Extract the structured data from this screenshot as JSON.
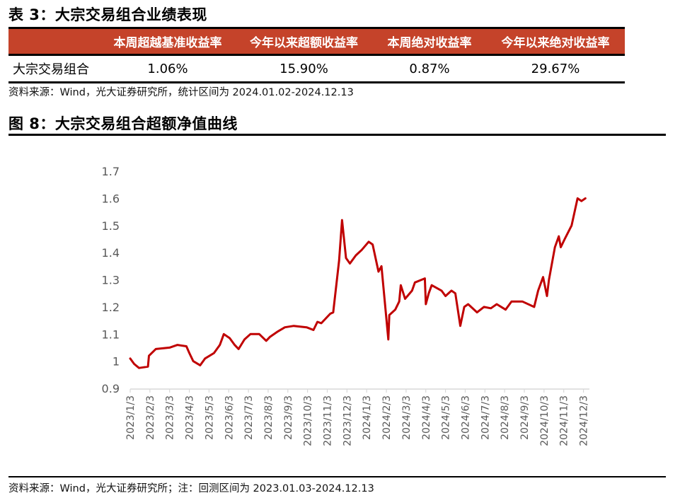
{
  "table": {
    "title": "表 3：大宗交易组合业绩表现",
    "headers": [
      "",
      "本周超越基准收益率",
      "今年以来超额收益率",
      "本周绝对收益率",
      "今年以来绝对收益率"
    ],
    "rows": [
      {
        "name": "大宗交易组合",
        "values": [
          "1.06%",
          "15.90%",
          "0.87%",
          "29.67%"
        ]
      }
    ],
    "source": "资料来源：Wind，光大证券研究所，统计区间为 2024.01.02-2024.12.13",
    "header_color": "#c5432a"
  },
  "figure": {
    "title": "图 8：大宗交易组合超额净值曲线",
    "source": "资料来源：Wind，光大证券研究所；注：回测区间为 2023.01.03-2024.12.13"
  },
  "chart_data": {
    "type": "line",
    "title": "大宗交易组合超额净值曲线",
    "xlabel": "",
    "ylabel": "",
    "ylim": [
      0.9,
      1.7
    ],
    "yticks": [
      "1.7",
      "1.6",
      "1.5",
      "1.4",
      "1.3",
      "1.2",
      "1.1",
      "1",
      "0.9"
    ],
    "ytick_values": [
      1.7,
      1.6,
      1.5,
      1.4,
      1.3,
      1.2,
      1.1,
      1.0,
      0.9
    ],
    "xticks": [
      "2023/1/3",
      "2023/2/3",
      "2023/3/3",
      "2023/4/3",
      "2023/5/3",
      "2023/6/3",
      "2023/7/3",
      "2023/8/3",
      "2023/9/3",
      "2023/10/3",
      "2023/11/3",
      "2023/12/3",
      "2024/1/3",
      "2024/2/3",
      "2024/3/3",
      "2024/4/3",
      "2024/5/3",
      "2024/6/3",
      "2024/7/3",
      "2024/8/3",
      "2024/9/3",
      "2024/10/3",
      "2024/11/3",
      "2024/12/3"
    ],
    "grid": false,
    "legend": null,
    "line_color": "#c00000",
    "series": [
      {
        "name": "大宗交易组合超额净值",
        "x_month_offset": [
          0,
          0.2,
          0.45,
          0.9,
          0.95,
          1.3,
          2.0,
          2.4,
          2.85,
          3.0,
          3.2,
          3.55,
          3.8,
          4.25,
          4.55,
          4.75,
          5.05,
          5.3,
          5.5,
          5.8,
          6.1,
          6.55,
          6.9,
          7.1,
          7.5,
          7.85,
          8.3,
          8.95,
          9.3,
          9.5,
          9.7,
          10.15,
          10.3,
          10.6,
          10.75,
          10.95,
          11.15,
          11.45,
          11.75,
          12.1,
          12.3,
          12.6,
          12.75,
          13.1,
          13.15,
          13.45,
          13.65,
          13.73,
          13.95,
          14.3,
          14.45,
          14.95,
          15.0,
          15.15,
          15.3,
          15.8,
          16.0,
          16.3,
          16.5,
          16.75,
          16.95,
          17.15,
          17.6,
          17.95,
          18.3,
          18.6,
          19.05,
          19.35,
          19.9,
          20.5,
          20.7,
          20.95,
          21.15,
          21.25,
          21.55,
          21.75,
          21.85,
          22.05,
          22.4,
          22.7,
          22.9,
          23.1
        ],
        "values": [
          1.01,
          0.99,
          0.975,
          0.98,
          1.02,
          1.045,
          1.05,
          1.06,
          1.055,
          1.03,
          1.0,
          0.985,
          1.01,
          1.03,
          1.06,
          1.1,
          1.085,
          1.06,
          1.045,
          1.08,
          1.1,
          1.1,
          1.075,
          1.09,
          1.11,
          1.125,
          1.13,
          1.125,
          1.115,
          1.145,
          1.14,
          1.175,
          1.18,
          1.37,
          1.52,
          1.38,
          1.36,
          1.39,
          1.41,
          1.44,
          1.43,
          1.33,
          1.35,
          1.08,
          1.17,
          1.19,
          1.22,
          1.28,
          1.23,
          1.26,
          1.29,
          1.305,
          1.21,
          1.25,
          1.28,
          1.26,
          1.24,
          1.26,
          1.25,
          1.13,
          1.2,
          1.21,
          1.18,
          1.2,
          1.195,
          1.21,
          1.19,
          1.22,
          1.22,
          1.2,
          1.26,
          1.31,
          1.24,
          1.3,
          1.42,
          1.46,
          1.42,
          1.45,
          1.5,
          1.6,
          1.59,
          1.6
        ]
      }
    ]
  }
}
